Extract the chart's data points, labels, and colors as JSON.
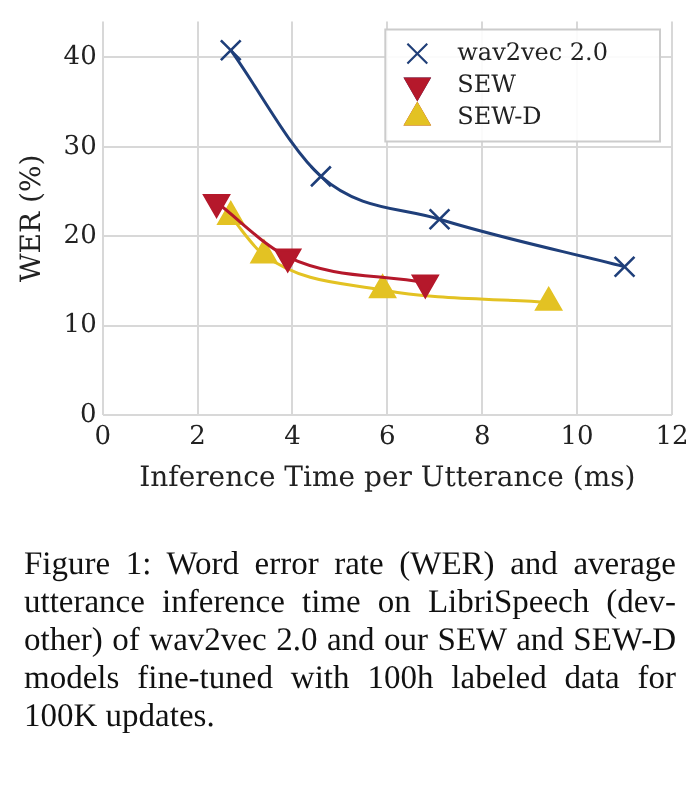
{
  "chart_data": {
    "type": "line",
    "xlabel": "Inference Time per Utterance (ms)",
    "ylabel": "WER (%)",
    "xlim": [
      0,
      12
    ],
    "xticks": [
      0,
      2,
      4,
      6,
      8,
      10,
      12
    ],
    "ylim": [
      0,
      44
    ],
    "yticks": [
      0,
      10,
      20,
      30,
      40
    ],
    "grid": true,
    "legend": "top right",
    "series": [
      {
        "name": "wav2vec 2.0",
        "color": "#1f3f7a",
        "marker": "cross",
        "x": [
          2.7,
          4.6,
          7.1,
          11.0
        ],
        "values": [
          40.8,
          26.7,
          21.9,
          16.6
        ]
      },
      {
        "name": "SEW",
        "color": "#b5182b",
        "marker": "triangle_down",
        "x": [
          2.4,
          3.9,
          6.8
        ],
        "values": [
          23.8,
          17.7,
          14.8
        ]
      },
      {
        "name": "SEW-D",
        "color": "#e3c223",
        "marker": "triangle",
        "x": [
          2.7,
          3.4,
          5.9,
          9.4
        ],
        "values": [
          22.2,
          17.9,
          14.0,
          12.6
        ]
      }
    ],
    "annotations": [
      "Figure 1: Word error rate (WER) and average utterance inference time on LibriSpeech (dev-other) of wav2vec 2.0 and our SEW and SEW-D models fine-tuned with 100h labeled data for 100K updates."
    ]
  }
}
